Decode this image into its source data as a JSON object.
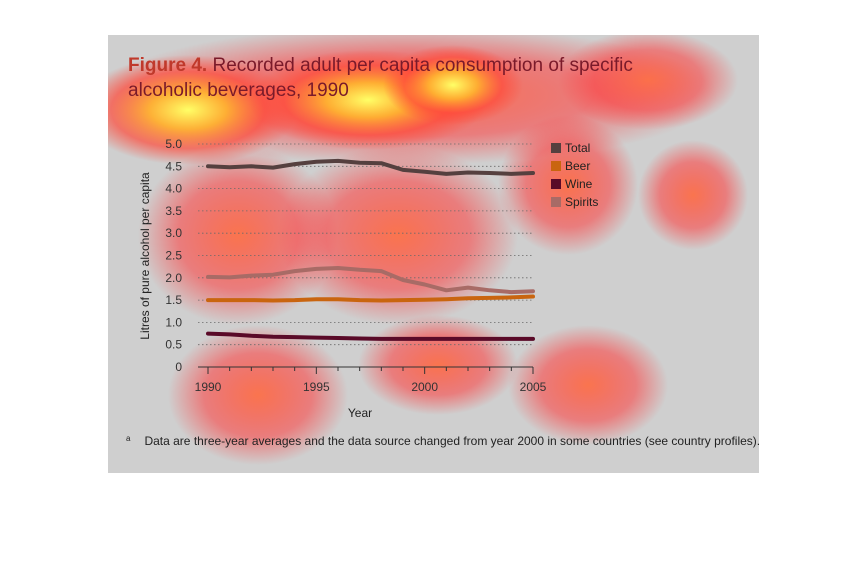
{
  "figure": {
    "label": "Figure 4.",
    "title": "Recorded adult per capita consumption of specific alcoholic beverages, 1990",
    "footnote_mark": "a",
    "footnote": "Data are three-year averages and the data source changed from year 2000 in some countries (see country profiles)."
  },
  "colors": {
    "panel_background": "#cfcfcf",
    "title_label": "#c0392b",
    "title_text": "#7a1a2a",
    "heatmap_hot": "#ffff66",
    "heatmap_warm": "#ff4a3a"
  },
  "chart_data": {
    "type": "line",
    "title": "",
    "xlabel": "Year",
    "ylabel": "Litres of pure alcohol per capita",
    "xlim": [
      1990,
      2005
    ],
    "ylim": [
      0,
      5
    ],
    "x_ticks": [
      1990,
      1995,
      2000,
      2005
    ],
    "y_ticks": [
      "0",
      "0.5",
      "1.0",
      "1.5",
      "2.0",
      "2.5",
      "3.0",
      "3.5",
      "4.0",
      "4.5",
      "5.0"
    ],
    "grid": "horizontal dotted",
    "legend_placement": "right",
    "x": [
      1990,
      1991,
      1992,
      1993,
      1994,
      1995,
      1996,
      1997,
      1998,
      1999,
      2000,
      2001,
      2002,
      2003,
      2004,
      2005
    ],
    "series": [
      {
        "name": "Total",
        "color": "#55403f",
        "values": [
          4.5,
          4.48,
          4.5,
          4.47,
          4.55,
          4.6,
          4.62,
          4.58,
          4.57,
          4.42,
          4.38,
          4.33,
          4.36,
          4.35,
          4.33,
          4.35
        ]
      },
      {
        "name": "Beer",
        "color": "#c9650f",
        "values": [
          1.5,
          1.5,
          1.5,
          1.49,
          1.5,
          1.52,
          1.52,
          1.5,
          1.49,
          1.5,
          1.51,
          1.52,
          1.54,
          1.55,
          1.56,
          1.58
        ]
      },
      {
        "name": "Wine",
        "color": "#5a0a28",
        "values": [
          0.75,
          0.73,
          0.7,
          0.68,
          0.67,
          0.66,
          0.65,
          0.64,
          0.63,
          0.63,
          0.63,
          0.63,
          0.63,
          0.63,
          0.63,
          0.63
        ]
      },
      {
        "name": "Spirits",
        "color": "#a86b66",
        "values": [
          2.02,
          2.01,
          2.05,
          2.07,
          2.15,
          2.2,
          2.22,
          2.18,
          2.15,
          1.95,
          1.85,
          1.72,
          1.78,
          1.72,
          1.68,
          1.7
        ]
      }
    ]
  }
}
